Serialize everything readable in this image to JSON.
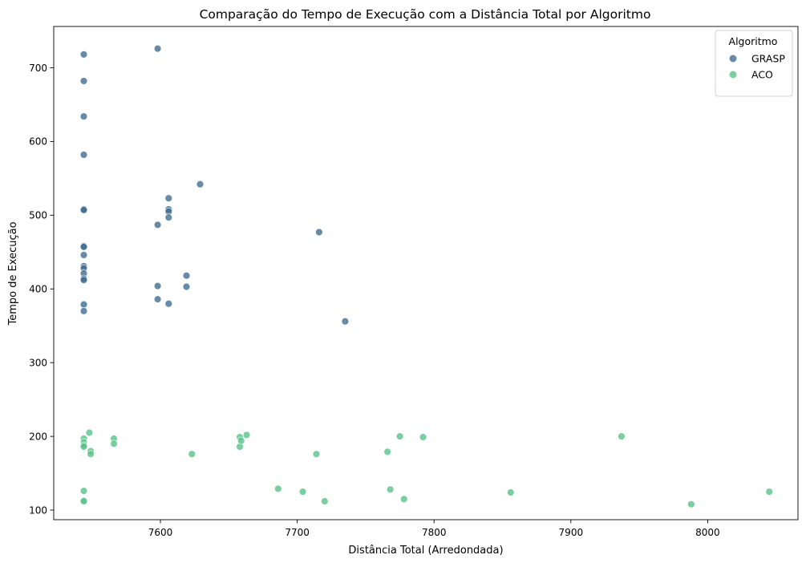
{
  "chart_data": {
    "type": "scatter",
    "title": "Comparação do Tempo de Execução com a Distância Total por Algoritmo",
    "xlabel": "Distância Total (Arredondada)",
    "ylabel": "Tempo de Execução",
    "xlim": [
      7522,
      8066
    ],
    "ylim": [
      87,
      756
    ],
    "xticks": [
      7600,
      7700,
      7800,
      7900,
      8000
    ],
    "yticks": [
      100,
      200,
      300,
      400,
      500,
      600,
      700
    ],
    "grid": false,
    "legend": {
      "title": "Algoritmo",
      "position": "top-right"
    },
    "series": [
      {
        "name": "GRASP",
        "color": "#3b6a8f",
        "points": [
          [
            7544,
            718
          ],
          [
            7544,
            682
          ],
          [
            7544,
            634
          ],
          [
            7544,
            582
          ],
          [
            7544,
            508
          ],
          [
            7544,
            507
          ],
          [
            7544,
            458
          ],
          [
            7544,
            457
          ],
          [
            7544,
            446
          ],
          [
            7544,
            431
          ],
          [
            7544,
            428
          ],
          [
            7544,
            421
          ],
          [
            7544,
            414
          ],
          [
            7544,
            412
          ],
          [
            7544,
            379
          ],
          [
            7544,
            370
          ],
          [
            7598,
            726
          ],
          [
            7598,
            487
          ],
          [
            7598,
            404
          ],
          [
            7598,
            386
          ],
          [
            7606,
            523
          ],
          [
            7606,
            508
          ],
          [
            7606,
            505
          ],
          [
            7606,
            497
          ],
          [
            7606,
            380
          ],
          [
            7619,
            418
          ],
          [
            7619,
            403
          ],
          [
            7629,
            542
          ],
          [
            7716,
            477
          ],
          [
            7735,
            356
          ]
        ]
      },
      {
        "name": "ACO",
        "color": "#55c285",
        "points": [
          [
            7544,
            197
          ],
          [
            7544,
            192
          ],
          [
            7544,
            188
          ],
          [
            7544,
            186
          ],
          [
            7544,
            126
          ],
          [
            7544,
            113
          ],
          [
            7544,
            112
          ],
          [
            7548,
            205
          ],
          [
            7549,
            180
          ],
          [
            7549,
            176
          ],
          [
            7566,
            197
          ],
          [
            7566,
            190
          ],
          [
            7623,
            176
          ],
          [
            7658,
            199
          ],
          [
            7658,
            186
          ],
          [
            7659,
            194
          ],
          [
            7663,
            202
          ],
          [
            7686,
            129
          ],
          [
            7704,
            125
          ],
          [
            7714,
            176
          ],
          [
            7720,
            112
          ],
          [
            7766,
            179
          ],
          [
            7768,
            128
          ],
          [
            7775,
            200
          ],
          [
            7778,
            115
          ],
          [
            7792,
            199
          ],
          [
            7856,
            124
          ],
          [
            7937,
            200
          ],
          [
            7988,
            108
          ],
          [
            8045,
            125
          ]
        ]
      }
    ]
  }
}
